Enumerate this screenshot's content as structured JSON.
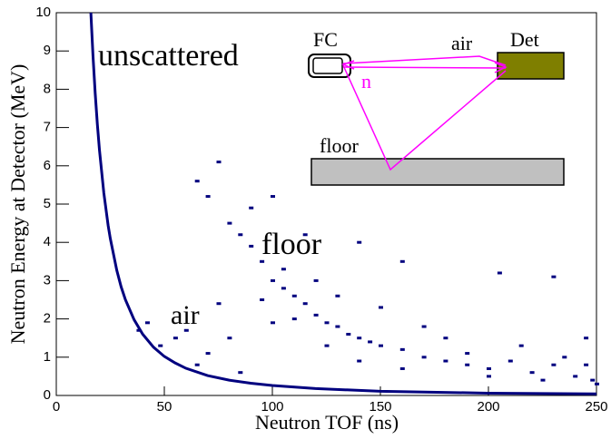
{
  "chart_data": {
    "type": "scatter",
    "x_label": "Neutron TOF (ns)",
    "y_label": "Neutron Energy at Detector (MeV)",
    "xlim": [
      0,
      250
    ],
    "ylim": [
      0,
      10
    ],
    "xticks": [
      0,
      50,
      100,
      150,
      200,
      250
    ],
    "yticks": [
      0,
      1,
      2,
      3,
      4,
      5,
      6,
      7,
      8,
      9,
      10
    ],
    "annotations": [
      "unscattered",
      "floor",
      "air"
    ],
    "inset_labels": {
      "fc": "FC",
      "air": "air",
      "det": "Det",
      "n": "n",
      "floor": "floor"
    },
    "series": [
      {
        "color": "#00007f",
        "mode": "line",
        "x": [
          16,
          17,
          18,
          19,
          20,
          22,
          24,
          25,
          28,
          30,
          32,
          36,
          40,
          45,
          50,
          55,
          60,
          70,
          80,
          90,
          100,
          120,
          150,
          200,
          250
        ],
        "y": [
          10,
          8.86,
          7.9,
          7.09,
          6.4,
          5.29,
          4.44,
          4.1,
          3.27,
          2.84,
          2.5,
          1.98,
          1.6,
          1.26,
          1.02,
          0.85,
          0.71,
          0.52,
          0.4,
          0.32,
          0.26,
          0.18,
          0.11,
          0.06,
          0.04
        ]
      },
      {
        "color": "#00007f",
        "mode": "markers",
        "x": [
          65,
          70,
          75,
          80,
          85,
          90,
          95,
          100,
          105,
          110,
          115,
          120,
          125,
          130,
          135,
          140,
          145,
          150,
          160,
          170,
          180,
          190,
          200,
          210,
          220,
          230,
          240,
          248,
          95,
          100,
          105,
          110,
          120,
          125,
          130,
          140,
          150,
          160,
          170,
          180,
          190,
          200,
          215,
          225,
          235,
          245,
          90,
          100,
          115,
          140,
          160,
          205,
          230,
          75,
          60,
          55,
          48,
          42,
          38,
          70,
          65,
          80,
          85,
          245,
          250
        ],
        "y": [
          5.6,
          5.2,
          6.1,
          4.5,
          4.2,
          3.9,
          3.5,
          3.0,
          2.8,
          2.6,
          2.4,
          2.1,
          1.9,
          1.8,
          1.6,
          1.5,
          1.4,
          1.3,
          1.2,
          1.0,
          0.9,
          0.8,
          0.7,
          0.9,
          0.6,
          0.8,
          0.5,
          0.4,
          2.5,
          1.9,
          3.3,
          2.0,
          3.0,
          1.3,
          2.6,
          0.9,
          2.3,
          0.7,
          1.8,
          1.5,
          1.1,
          0.5,
          1.3,
          0.4,
          1.0,
          0.8,
          4.9,
          5.2,
          4.2,
          4.0,
          3.5,
          3.2,
          3.1,
          2.4,
          1.7,
          1.5,
          1.3,
          1.9,
          1.7,
          1.1,
          0.8,
          1.5,
          0.6,
          1.5,
          0.3
        ]
      }
    ]
  }
}
